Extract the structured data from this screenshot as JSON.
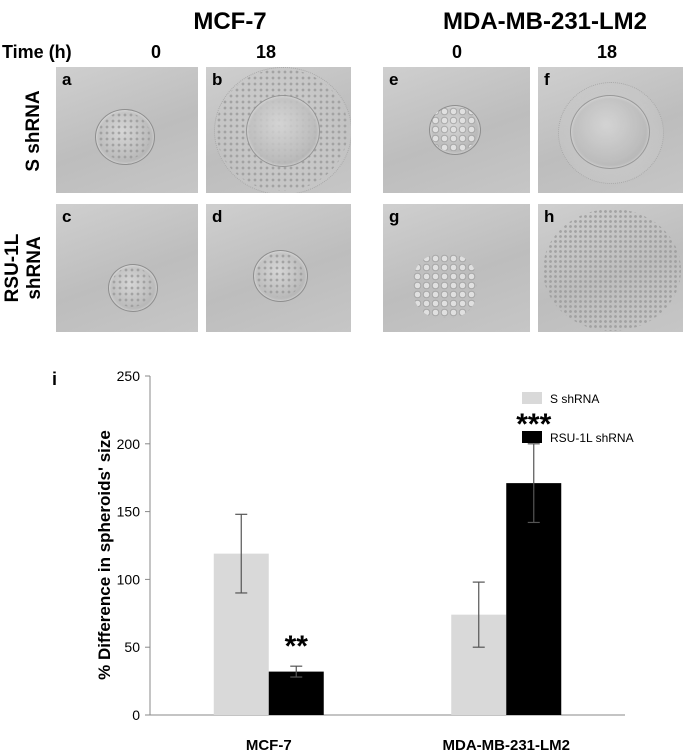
{
  "figure": {
    "column_titles": [
      "MCF-7",
      "MDA-MB-231-LM2"
    ],
    "time_label": "Time (h)",
    "time_points": [
      "0",
      "18",
      "0",
      "18"
    ],
    "row_labels": [
      "S shRNA",
      "RSU-1L shRNA"
    ],
    "panel_letters": [
      "a",
      "b",
      "c",
      "d",
      "e",
      "f",
      "g",
      "h"
    ],
    "chart_panel_letter": "i"
  },
  "chart_data": {
    "type": "bar",
    "title": "",
    "xlabel": "",
    "ylabel": "% Difference in spheroids' size",
    "categories": [
      "MCF-7",
      "MDA-MB-231-LM2"
    ],
    "series": [
      {
        "name": "S shRNA",
        "values": [
          119,
          74
        ],
        "error": [
          29,
          24
        ],
        "color": "#d9d9d9"
      },
      {
        "name": "RSU-1L shRNA",
        "values": [
          32,
          171
        ],
        "error": [
          4,
          29
        ],
        "color": "#000000"
      }
    ],
    "significance": [
      {
        "category": "MCF-7",
        "series": "RSU-1L shRNA",
        "label": "**"
      },
      {
        "category": "MDA-MB-231-LM2",
        "series": "RSU-1L shRNA",
        "label": "***"
      }
    ],
    "ylim": [
      0,
      250
    ],
    "yticks": [
      0,
      50,
      100,
      150,
      200,
      250
    ],
    "grid": false,
    "legend_position": "top-right"
  }
}
